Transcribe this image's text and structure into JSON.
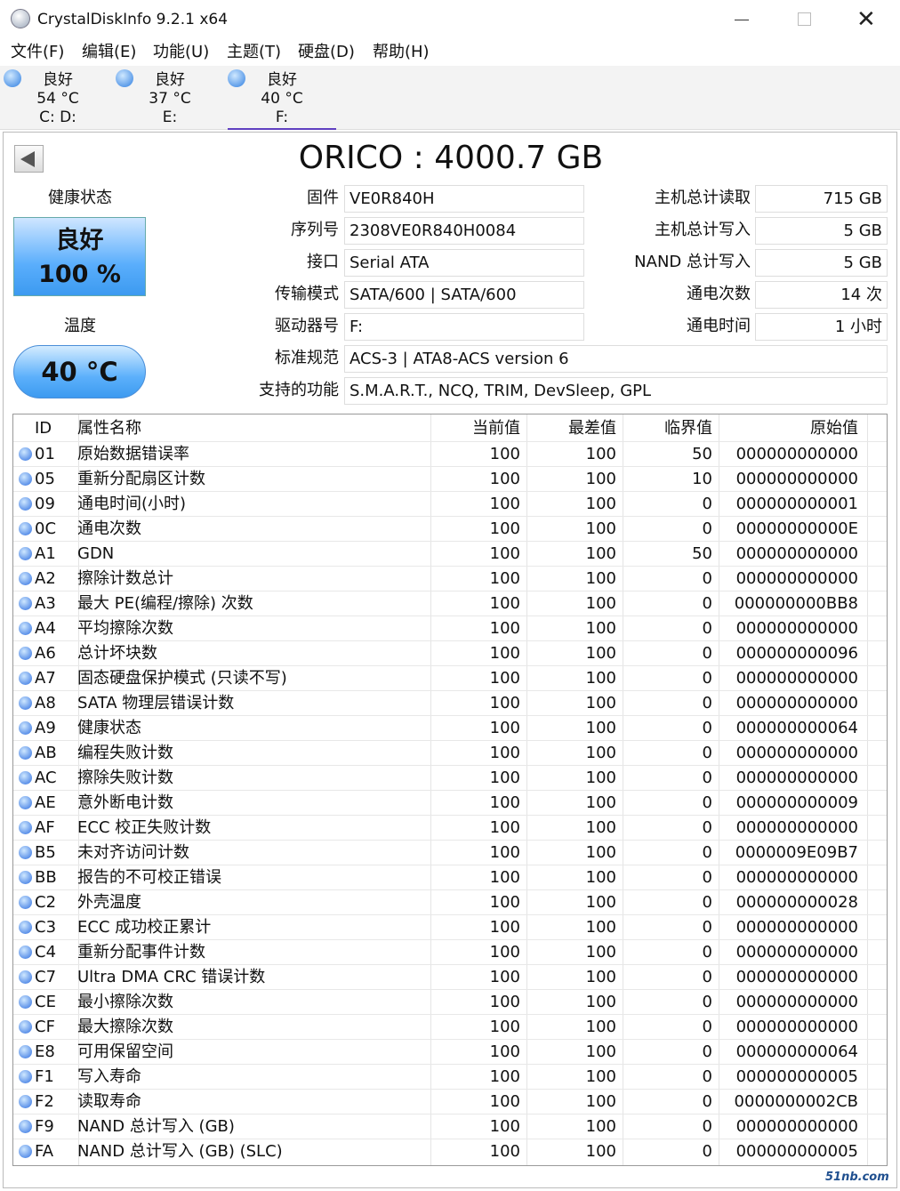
{
  "window": {
    "title": "CrystalDiskInfo 9.2.1 x64"
  },
  "menu": [
    "文件(F)",
    "编辑(E)",
    "功能(U)",
    "主题(T)",
    "硬盘(D)",
    "帮助(H)"
  ],
  "drives": [
    {
      "status": "良好",
      "temperature": "54 °C",
      "letters": "C: D:"
    },
    {
      "status": "良好",
      "temperature": "37 °C",
      "letters": "E:"
    },
    {
      "status": "良好",
      "temperature": "40 °C",
      "letters": "F:"
    }
  ],
  "disk": {
    "title": "ORICO : 4000.7 GB",
    "health_label": "健康状态",
    "health_status": "良好",
    "health_percent": "100 %",
    "temperature_label": "温度",
    "temperature": "40 °C"
  },
  "info_left": [
    {
      "label": "固件",
      "value": "VE0R840H"
    },
    {
      "label": "序列号",
      "value": "2308VE0R840H0084"
    },
    {
      "label": "接口",
      "value": "Serial ATA"
    },
    {
      "label": "传输模式",
      "value": "SATA/600 | SATA/600"
    },
    {
      "label": "驱动器号",
      "value": "F:"
    },
    {
      "label": "标准规范",
      "value": "ACS-3 | ATA8-ACS version 6"
    },
    {
      "label": "支持的功能",
      "value": "S.M.A.R.T., NCQ, TRIM, DevSleep, GPL"
    }
  ],
  "info_right": [
    {
      "label": "主机总计读取",
      "value": "715 GB"
    },
    {
      "label": "主机总计写入",
      "value": "5 GB"
    },
    {
      "label": "NAND 总计写入",
      "value": "5 GB"
    },
    {
      "label": "通电次数",
      "value": "14 次"
    },
    {
      "label": "通电时间",
      "value": "1 小时"
    }
  ],
  "smart": {
    "headers": [
      "ID",
      "属性名称",
      "当前值",
      "最差值",
      "临界值",
      "原始值"
    ],
    "rows": [
      [
        "01",
        "原始数据错误率",
        "100",
        "100",
        "50",
        "000000000000"
      ],
      [
        "05",
        "重新分配扇区计数",
        "100",
        "100",
        "10",
        "000000000000"
      ],
      [
        "09",
        "通电时间(小时)",
        "100",
        "100",
        "0",
        "000000000001"
      ],
      [
        "0C",
        "通电次数",
        "100",
        "100",
        "0",
        "00000000000E"
      ],
      [
        "A1",
        "GDN",
        "100",
        "100",
        "50",
        "000000000000"
      ],
      [
        "A2",
        "擦除计数总计",
        "100",
        "100",
        "0",
        "000000000000"
      ],
      [
        "A3",
        "最大 PE(编程/擦除) 次数",
        "100",
        "100",
        "0",
        "000000000BB8"
      ],
      [
        "A4",
        "平均擦除次数",
        "100",
        "100",
        "0",
        "000000000000"
      ],
      [
        "A6",
        "总计坏块数",
        "100",
        "100",
        "0",
        "000000000096"
      ],
      [
        "A7",
        "固态硬盘保护模式 (只读不写)",
        "100",
        "100",
        "0",
        "000000000000"
      ],
      [
        "A8",
        "SATA 物理层错误计数",
        "100",
        "100",
        "0",
        "000000000000"
      ],
      [
        "A9",
        "健康状态",
        "100",
        "100",
        "0",
        "000000000064"
      ],
      [
        "AB",
        "编程失败计数",
        "100",
        "100",
        "0",
        "000000000000"
      ],
      [
        "AC",
        "擦除失败计数",
        "100",
        "100",
        "0",
        "000000000000"
      ],
      [
        "AE",
        "意外断电计数",
        "100",
        "100",
        "0",
        "000000000009"
      ],
      [
        "AF",
        "ECC 校正失败计数",
        "100",
        "100",
        "0",
        "000000000000"
      ],
      [
        "B5",
        "未对齐访问计数",
        "100",
        "100",
        "0",
        "0000009E09B7"
      ],
      [
        "BB",
        "报告的不可校正错误",
        "100",
        "100",
        "0",
        "000000000000"
      ],
      [
        "C2",
        "外壳温度",
        "100",
        "100",
        "0",
        "000000000028"
      ],
      [
        "C3",
        "ECC 成功校正累计",
        "100",
        "100",
        "0",
        "000000000000"
      ],
      [
        "C4",
        "重新分配事件计数",
        "100",
        "100",
        "0",
        "000000000000"
      ],
      [
        "C7",
        "Ultra DMA CRC 错误计数",
        "100",
        "100",
        "0",
        "000000000000"
      ],
      [
        "CE",
        "最小擦除次数",
        "100",
        "100",
        "0",
        "000000000000"
      ],
      [
        "CF",
        "最大擦除次数",
        "100",
        "100",
        "0",
        "000000000000"
      ],
      [
        "E8",
        "可用保留空间",
        "100",
        "100",
        "0",
        "000000000064"
      ],
      [
        "F1",
        "写入寿命",
        "100",
        "100",
        "0",
        "000000000005"
      ],
      [
        "F2",
        "读取寿命",
        "100",
        "100",
        "0",
        "0000000002CB"
      ],
      [
        "F9",
        "NAND 总计写入 (GB)",
        "100",
        "100",
        "0",
        "000000000000"
      ],
      [
        "FA",
        "NAND 总计写入 (GB) (SLC)",
        "100",
        "100",
        "0",
        "000000000005"
      ]
    ]
  },
  "watermark": "51nb.com"
}
